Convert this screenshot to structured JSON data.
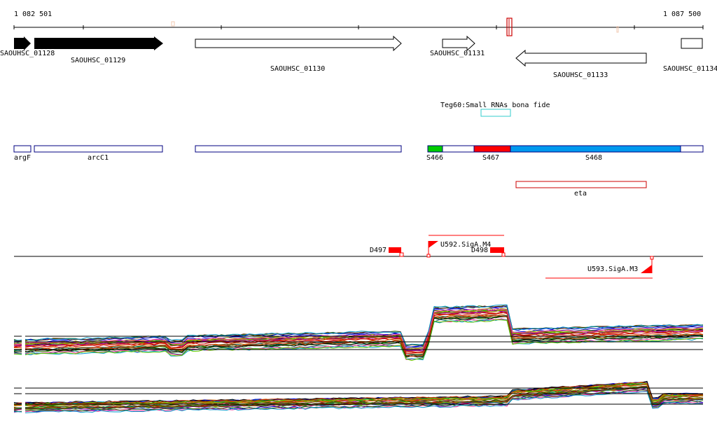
{
  "coords": {
    "start": "1 082 501",
    "end": "1 087 500"
  },
  "genes": [
    {
      "label": "SAOUHSC_01128",
      "strand": "+",
      "filled": true
    },
    {
      "label": "SAOUHSC_01129",
      "strand": "+",
      "filled": true
    },
    {
      "label": "SAOUHSC_01130",
      "strand": "+",
      "filled": false
    },
    {
      "label": "SAOUHSC_01131",
      "strand": "+",
      "filled": false
    },
    {
      "label": "SAOUHSC_01133",
      "strand": "-",
      "filled": false
    },
    {
      "label": "SAOUHSC_01134",
      "strand": "+",
      "filled": false
    }
  ],
  "small_rna": {
    "label": "Teg60:Small RNAs bona fide",
    "color": "#33cccc"
  },
  "operons": [
    {
      "label": "argF",
      "color": "#ffffff"
    },
    {
      "label": "arcC1",
      "color": "#ffffff"
    },
    {
      "label": "",
      "color": "#ffffff"
    },
    {
      "label": "S466",
      "color": "#00cc00"
    },
    {
      "label": "",
      "color": "#ffffff"
    },
    {
      "label": "S467",
      "color": "#ff0000"
    },
    {
      "label": "S468",
      "color": "#0099ee"
    },
    {
      "label": "",
      "color": "#ffffff"
    }
  ],
  "eta": {
    "label": "eta",
    "color": "#cc0000"
  },
  "features": [
    {
      "label": "D497"
    },
    {
      "label": "D498"
    },
    {
      "label": "U592.SigA.M4"
    },
    {
      "label": "U593.SigA.M3"
    }
  ],
  "colors": {
    "outline": "#000080",
    "feature": "#ff0000"
  }
}
